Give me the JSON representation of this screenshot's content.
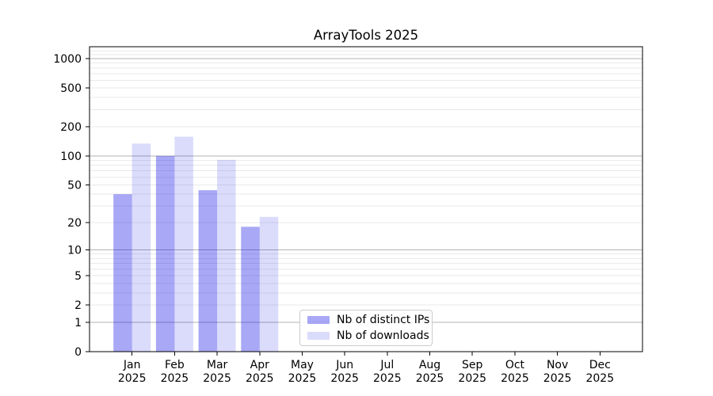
{
  "page": {
    "background": "#ffffff",
    "text_color": "#000000"
  },
  "chart_data": {
    "type": "bar",
    "title": "ArrayTools 2025",
    "xlabel": "",
    "ylabel": "",
    "x_tick_months": [
      "Jan",
      "Feb",
      "Mar",
      "Apr",
      "May",
      "Jun",
      "Jul",
      "Aug",
      "Sep",
      "Oct",
      "Nov",
      "Dec"
    ],
    "x_tick_year": "2025",
    "series": [
      {
        "name": "Nb of distinct IPs",
        "color": "#0d0de6",
        "alpha": 0.36,
        "values": [
          40,
          100,
          44,
          18,
          0,
          0,
          0,
          0,
          0,
          0,
          0,
          0
        ]
      },
      {
        "name": "Nb of downloads",
        "color": "#0d0de6",
        "alpha": 0.15,
        "values": [
          134,
          158,
          91,
          23,
          0,
          0,
          0,
          0,
          0,
          0,
          0,
          0
        ]
      }
    ],
    "yscale": "log1p",
    "ylim": [
      0,
      1300
    ],
    "y_tick_values": [
      0,
      1,
      2,
      5,
      10,
      20,
      50,
      100,
      200,
      500,
      1000
    ],
    "grid": {
      "major_values": [
        1,
        10,
        100,
        1000
      ],
      "minor_on": true,
      "major_color": "#b3b3b3",
      "minor_color": "#eaeaea"
    },
    "axis_color": "#000000",
    "legend_position": "inside-bottom-center"
  }
}
